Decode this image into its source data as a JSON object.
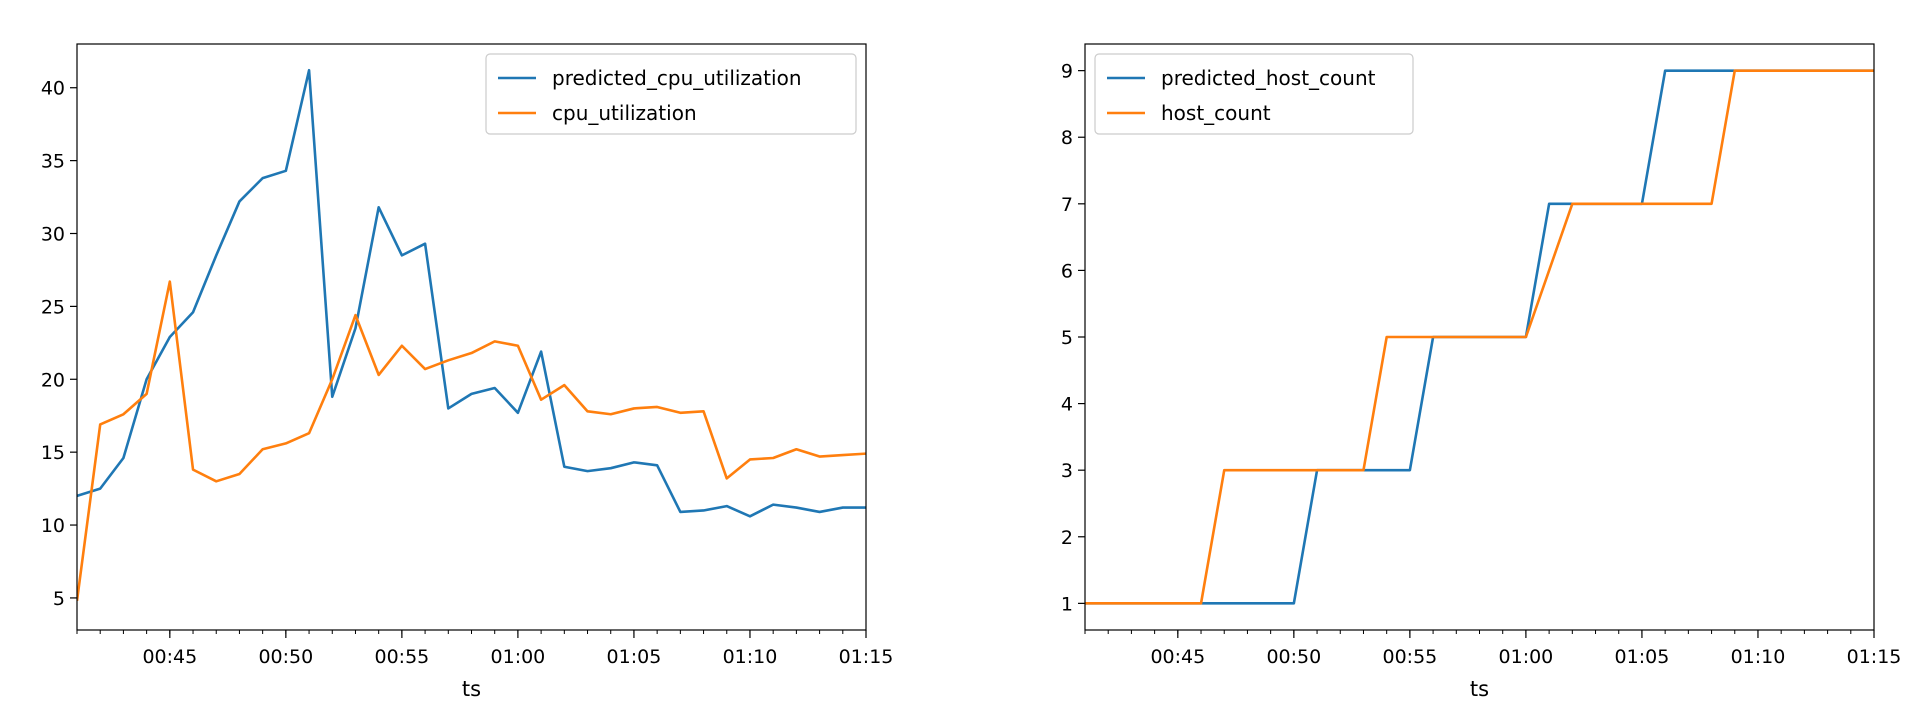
{
  "chart_data": [
    {
      "type": "line",
      "xlabel": "ts",
      "ylabel": "",
      "x_tick_labels": [
        "00:45",
        "00:50",
        "00:55",
        "01:00",
        "01:05",
        "01:10",
        "01:15"
      ],
      "y_tick_labels": [
        "5",
        "10",
        "15",
        "20",
        "25",
        "30",
        "35",
        "40"
      ],
      "xlim": [
        "00:41",
        "01:15"
      ],
      "ylim": [
        2.8,
        43.0
      ],
      "legend": "top-right",
      "grid": false,
      "x": [
        "00:41",
        "00:42",
        "00:43",
        "00:44",
        "00:45",
        "00:46",
        "00:47",
        "00:48",
        "00:49",
        "00:50",
        "00:51",
        "00:52",
        "00:53",
        "00:54",
        "00:55",
        "00:56",
        "00:57",
        "00:58",
        "00:59",
        "01:00",
        "01:01",
        "01:02",
        "01:03",
        "01:04",
        "01:05",
        "01:06",
        "01:07",
        "01:08",
        "01:09",
        "01:10",
        "01:11",
        "01:12",
        "01:13",
        "01:14",
        "01:15"
      ],
      "series": [
        {
          "name": "predicted_cpu_utilization",
          "color": "#1f77b4",
          "values": [
            12.0,
            12.5,
            14.6,
            20.0,
            22.9,
            24.6,
            28.5,
            32.2,
            33.8,
            34.3,
            41.2,
            18.8,
            23.5,
            31.8,
            28.5,
            29.3,
            18.0,
            19.0,
            19.4,
            17.7,
            21.9,
            14.0,
            13.7,
            13.9,
            14.3,
            14.1,
            10.9,
            11.0,
            11.3,
            10.6,
            11.4,
            11.2,
            10.9,
            11.2,
            11.2
          ]
        },
        {
          "name": "cpu_utilization",
          "color": "#ff7f0e",
          "values": [
            4.8,
            16.9,
            17.6,
            19.0,
            26.7,
            13.8,
            13.0,
            13.5,
            15.2,
            15.6,
            16.3,
            20.0,
            24.4,
            20.3,
            22.3,
            20.7,
            21.3,
            21.8,
            22.6,
            22.3,
            18.6,
            19.6,
            17.8,
            17.6,
            18.0,
            18.1,
            17.7,
            17.8,
            13.2,
            14.5,
            14.6,
            15.2,
            14.7,
            14.8,
            14.9
          ]
        }
      ]
    },
    {
      "type": "line",
      "xlabel": "ts",
      "ylabel": "",
      "x_tick_labels": [
        "00:45",
        "00:50",
        "00:55",
        "01:00",
        "01:05",
        "01:10",
        "01:15"
      ],
      "y_tick_labels": [
        "1",
        "2",
        "3",
        "4",
        "5",
        "6",
        "7",
        "8",
        "9"
      ],
      "xlim": [
        "00:41",
        "01:15"
      ],
      "ylim": [
        0.6,
        9.4
      ],
      "legend": "top-left",
      "grid": false,
      "x": [
        "00:41",
        "00:42",
        "00:43",
        "00:44",
        "00:45",
        "00:46",
        "00:47",
        "00:48",
        "00:49",
        "00:50",
        "00:51",
        "00:52",
        "00:53",
        "00:54",
        "00:55",
        "00:56",
        "00:57",
        "00:58",
        "00:59",
        "01:00",
        "01:01",
        "01:02",
        "01:03",
        "01:04",
        "01:05",
        "01:06",
        "01:07",
        "01:08",
        "01:09",
        "01:10",
        "01:11",
        "01:12",
        "01:13",
        "01:14",
        "01:15"
      ],
      "series": [
        {
          "name": "predicted_host_count",
          "color": "#1f77b4",
          "values": [
            1,
            1,
            1,
            1,
            1,
            1,
            1,
            1,
            1,
            1,
            3,
            3,
            3,
            3,
            3,
            5,
            5,
            5,
            5,
            5,
            7,
            7,
            7,
            7,
            7,
            9,
            9,
            9,
            9,
            9,
            9,
            9,
            9,
            9,
            9
          ]
        },
        {
          "name": "host_count",
          "color": "#ff7f0e",
          "values": [
            1,
            1,
            1,
            1,
            1,
            1,
            3,
            3,
            3,
            3,
            3,
            3,
            3,
            5,
            5,
            5,
            5,
            5,
            5,
            5,
            6,
            7,
            7,
            7,
            7,
            7,
            7,
            7,
            9,
            9,
            9,
            9,
            9,
            9,
            9
          ]
        }
      ]
    }
  ]
}
